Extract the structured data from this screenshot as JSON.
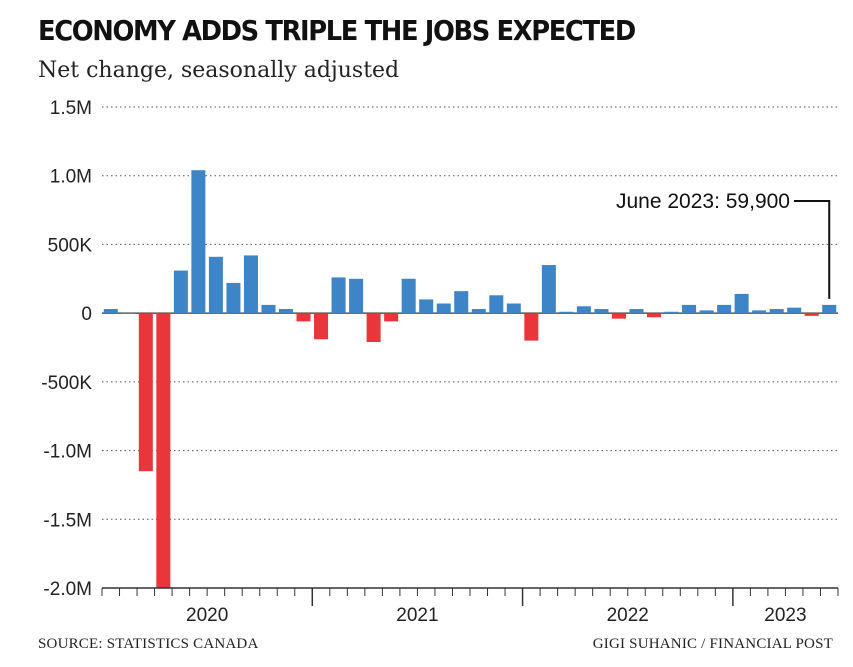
{
  "chart_data": {
    "type": "bar",
    "title": "ECONOMY ADDS TRIPLE THE JOBS EXPECTED",
    "subtitle": "Net change, seasonally adjusted",
    "ylim": [
      -2000000,
      1500000
    ],
    "y_ticks": [
      {
        "value": 1500000,
        "label": "1.5M"
      },
      {
        "value": 1000000,
        "label": "1.0M"
      },
      {
        "value": 500000,
        "label": "500K"
      },
      {
        "value": 0,
        "label": "0"
      },
      {
        "value": -500000,
        "label": "-500K"
      },
      {
        "value": -1000000,
        "label": "-1.0M"
      },
      {
        "value": -1500000,
        "label": "-1.5M"
      },
      {
        "value": -2000000,
        "label": "-2.0M"
      }
    ],
    "x_labels": [
      {
        "label": "2020",
        "center_index": 5.5
      },
      {
        "label": "2021",
        "center_index": 17.5
      },
      {
        "label": "2022",
        "center_index": 29.5
      },
      {
        "label": "2023",
        "center_index": 38.5
      }
    ],
    "year_start_indices": [
      0,
      12,
      24,
      36
    ],
    "months": [
      "2020-01",
      "2020-02",
      "2020-03",
      "2020-04",
      "2020-05",
      "2020-06",
      "2020-07",
      "2020-08",
      "2020-09",
      "2020-10",
      "2020-11",
      "2020-12",
      "2021-01",
      "2021-02",
      "2021-03",
      "2021-04",
      "2021-05",
      "2021-06",
      "2021-07",
      "2021-08",
      "2021-09",
      "2021-10",
      "2021-11",
      "2021-12",
      "2022-01",
      "2022-02",
      "2022-03",
      "2022-04",
      "2022-05",
      "2022-06",
      "2022-07",
      "2022-08",
      "2022-09",
      "2022-10",
      "2022-11",
      "2022-12",
      "2023-01",
      "2023-02",
      "2023-03",
      "2023-04",
      "2023-05",
      "2023-06"
    ],
    "values": [
      30000,
      0,
      -1150000,
      -2000000,
      310000,
      1040000,
      410000,
      220000,
      420000,
      60000,
      30000,
      -60000,
      -190000,
      260000,
      250000,
      -210000,
      -60000,
      250000,
      100000,
      70000,
      160000,
      30000,
      130000,
      70000,
      -200000,
      350000,
      10000,
      50000,
      30000,
      -40000,
      30000,
      -30000,
      10000,
      60000,
      20000,
      60000,
      140000,
      20000,
      30000,
      40000,
      -20000,
      59900
    ],
    "positive_color": "#3d85c6",
    "negative_color": "#e8363a",
    "annotation": {
      "text": "June 2023: 59,900",
      "index": 41
    }
  },
  "footer": {
    "source": "SOURCE: STATISTICS CANADA",
    "credit": "GIGI SUHANIC / FINANCIAL POST"
  }
}
